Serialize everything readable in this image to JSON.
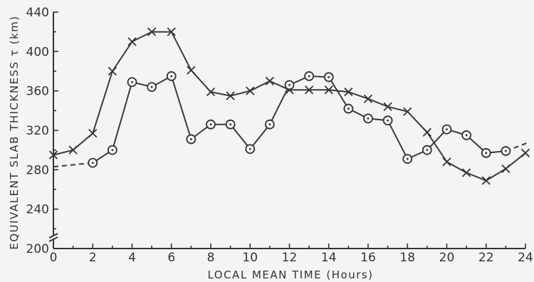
{
  "chart_data": {
    "type": "line",
    "xlabel": "LOCAL MEAN TIME (Hours)",
    "ylabel": "EQUIVALENT SLAB THICKNESS τ (km)",
    "xlim": [
      0,
      24
    ],
    "ylim": [
      200,
      440
    ],
    "x_ticks": [
      0,
      2,
      4,
      6,
      8,
      10,
      12,
      14,
      16,
      18,
      20,
      22,
      24
    ],
    "y_ticks": [
      200,
      240,
      280,
      320,
      360,
      400,
      440
    ],
    "grid": false,
    "series": [
      {
        "marker": "x",
        "x": [
          0,
          1,
          2,
          3,
          4,
          5,
          6,
          7,
          8,
          9,
          10,
          11,
          12,
          13,
          14,
          15,
          16,
          17,
          18,
          19,
          20,
          21,
          22,
          23,
          24
        ],
        "values": [
          295,
          300,
          317,
          380,
          410,
          420,
          420,
          381,
          359,
          355,
          360,
          370,
          361,
          361,
          361,
          359,
          352,
          344,
          339,
          318,
          288,
          277,
          269,
          281,
          297
        ]
      },
      {
        "marker": "o",
        "x": [
          2,
          3,
          4,
          5,
          6,
          7,
          8,
          9,
          10,
          11,
          12,
          13,
          14,
          15,
          16,
          17,
          18,
          19,
          20,
          21,
          22,
          23
        ],
        "values": [
          287,
          300,
          369,
          364,
          375,
          311,
          326,
          326,
          301,
          326,
          366,
          375,
          374,
          342,
          332,
          330,
          291,
          300,
          321,
          315,
          297,
          299
        ],
        "dashed_extensions": [
          {
            "x": [
              0,
              2
            ],
            "values": [
              283,
              287
            ]
          },
          {
            "x": [
              23,
              24.2
            ],
            "values": [
              299,
              308
            ]
          }
        ]
      }
    ]
  }
}
